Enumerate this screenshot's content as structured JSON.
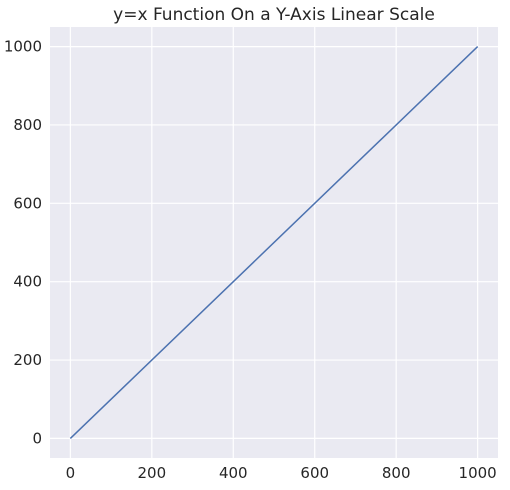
{
  "chart_data": {
    "type": "line",
    "title": "y=x Function On a Y-Axis Linear Scale",
    "xlabel": "",
    "ylabel": "",
    "xlim": [
      -50,
      1050
    ],
    "ylim": [
      -50,
      1050
    ],
    "x_ticks": [
      0,
      200,
      400,
      600,
      800,
      1000
    ],
    "y_ticks": [
      0,
      200,
      400,
      600,
      800,
      1000
    ],
    "y_scale": "linear",
    "grid": true,
    "series": [
      {
        "x": [
          0,
          1000
        ],
        "y": [
          0,
          1000
        ],
        "color": "#4c72b0"
      }
    ]
  },
  "colors": {
    "plot_background": "#eaeaf2",
    "grid": "#ffffff",
    "text": "#262626"
  }
}
